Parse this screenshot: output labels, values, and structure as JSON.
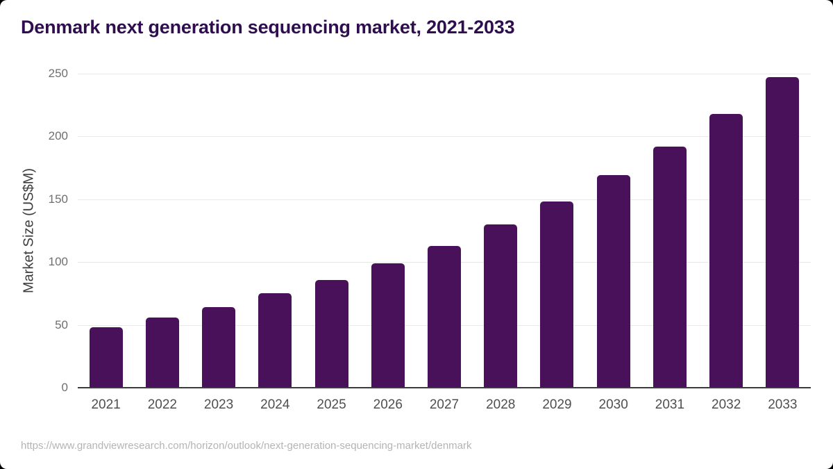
{
  "page": {
    "title": "Denmark next generation sequencing market, 2021-2033",
    "source_url": "https://www.grandviewresearch.com/horizon/outlook/next-generation-sequencing-market/denmark"
  },
  "colors": {
    "background": "#ffffff",
    "outside": "#000000",
    "bar": "#481159",
    "title": "#2f0e4f",
    "grid": "#e8e8e8",
    "axis_line": "#3c3c3c",
    "y_tick": "#6f6f6f",
    "x_tick": "#4f4f4f",
    "axis_title": "#3d3d3d",
    "footer": "#b4b4b4"
  },
  "chart_data": {
    "type": "bar",
    "title": "Denmark next generation sequencing market, 2021-2033",
    "ylabel": "Market Size (US$M)",
    "xlabel": "",
    "series_name": "Market Size (US$M)",
    "categories": [
      "2021",
      "2022",
      "2023",
      "2024",
      "2025",
      "2026",
      "2027",
      "2028",
      "2029",
      "2030",
      "2031",
      "2032",
      "2033"
    ],
    "values": [
      48,
      56,
      64,
      75,
      86,
      99,
      113,
      130,
      148,
      169,
      192,
      218,
      247
    ],
    "ylim": [
      0,
      250
    ],
    "yticks": [
      0,
      50,
      100,
      150,
      200,
      250
    ],
    "grid": "horizontal-only",
    "legend": "none",
    "bar_color": "#481159"
  }
}
